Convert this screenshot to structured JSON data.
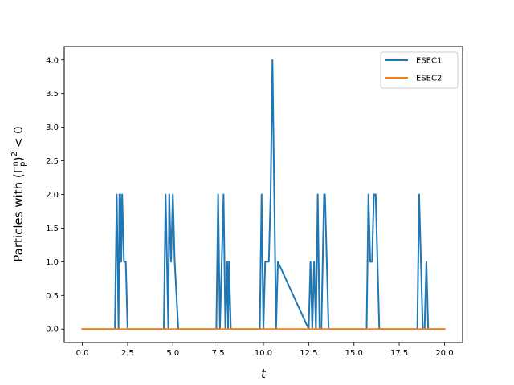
{
  "chart_data": {
    "type": "line",
    "title": "",
    "xlabel": "t",
    "ylabel": "Particles with (Γ_p^n)² < 0",
    "xlim": [
      -1.0,
      21.0
    ],
    "ylim": [
      -0.2,
      4.2
    ],
    "xticks": [
      0.0,
      2.5,
      5.0,
      7.5,
      10.0,
      12.5,
      15.0,
      17.5,
      20.0
    ],
    "xtick_labels": [
      "0.0",
      "2.5",
      "5.0",
      "7.5",
      "10.0",
      "12.5",
      "15.0",
      "17.5",
      "20.0"
    ],
    "yticks": [
      0.0,
      0.5,
      1.0,
      1.5,
      2.0,
      2.5,
      3.0,
      3.5,
      4.0
    ],
    "ytick_labels": [
      "0.0",
      "0.5",
      "1.0",
      "1.5",
      "2.0",
      "2.5",
      "3.0",
      "3.5",
      "4.0"
    ],
    "grid": false,
    "legend_position": "top-right",
    "series": [
      {
        "name": "ESEC1",
        "color": "#1f77b4",
        "x": [
          0.0,
          1.8,
          1.9,
          2.0,
          2.05,
          2.1,
          2.15,
          2.2,
          2.3,
          2.4,
          2.5,
          4.5,
          4.6,
          4.75,
          4.8,
          4.9,
          5.0,
          5.1,
          5.3,
          7.4,
          7.5,
          7.6,
          7.8,
          7.9,
          8.0,
          8.05,
          8.1,
          8.2,
          9.8,
          9.9,
          10.0,
          10.1,
          10.3,
          10.4,
          10.5,
          10.6,
          10.7,
          10.8,
          12.5,
          12.6,
          12.7,
          12.8,
          12.9,
          13.0,
          13.1,
          13.2,
          13.35,
          13.4,
          13.6,
          15.7,
          15.8,
          15.9,
          16.0,
          16.1,
          16.15,
          16.2,
          16.4,
          18.5,
          18.6,
          18.8,
          18.9,
          19.0,
          19.1,
          20.0
        ],
        "y": [
          0,
          0,
          2,
          0,
          2,
          2,
          1,
          2,
          1,
          1,
          0,
          0,
          2,
          0,
          2,
          1,
          2,
          1,
          0,
          0,
          2,
          0,
          2,
          0,
          1,
          0,
          1,
          0,
          0,
          2,
          0,
          1,
          1,
          2,
          4,
          2,
          0,
          1,
          0,
          1,
          0,
          1,
          0,
          2,
          0,
          0,
          2,
          2,
          0,
          0,
          2,
          1,
          1,
          2,
          2,
          2,
          0,
          0,
          2,
          0,
          0,
          1,
          0,
          0
        ]
      },
      {
        "name": "ESEC2",
        "color": "#ff7f0e",
        "x": [
          0.0,
          20.0
        ],
        "y": [
          0,
          0
        ]
      }
    ]
  }
}
